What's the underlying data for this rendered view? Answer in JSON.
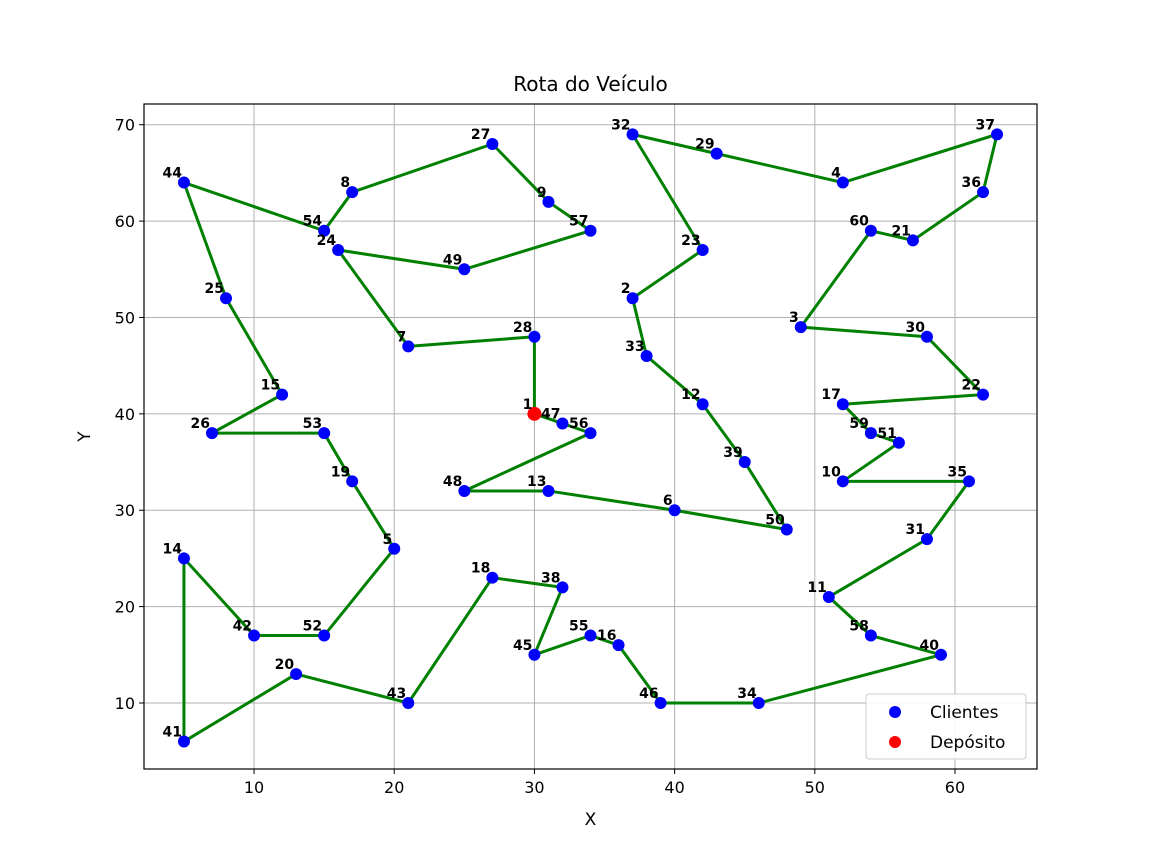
{
  "chart_data": {
    "type": "scatter",
    "title": "Rota do Veículo",
    "xlabel": "X",
    "ylabel": "Y",
    "xlim": [
      2.15,
      65.85
    ],
    "ylim": [
      3.15,
      72.15
    ],
    "x_ticks": [
      10,
      20,
      30,
      40,
      50,
      60
    ],
    "y_ticks": [
      10,
      20,
      30,
      40,
      50,
      60,
      70
    ],
    "grid": true,
    "legend": {
      "position": "lower-right",
      "entries": [
        "Clientes",
        "Depósito"
      ]
    },
    "colors": {
      "clientes": "#0000ff",
      "deposito": "#ff0000",
      "route": "#008000"
    },
    "depot": {
      "label": "1",
      "x": 30,
      "y": 40
    },
    "clients": [
      {
        "label": "2",
        "x": 37,
        "y": 52
      },
      {
        "label": "3",
        "x": 49,
        "y": 49
      },
      {
        "label": "4",
        "x": 52,
        "y": 64
      },
      {
        "label": "5",
        "x": 20,
        "y": 26
      },
      {
        "label": "6",
        "x": 40,
        "y": 30
      },
      {
        "label": "7",
        "x": 21,
        "y": 47
      },
      {
        "label": "8",
        "x": 17,
        "y": 63
      },
      {
        "label": "9",
        "x": 31,
        "y": 62
      },
      {
        "label": "10",
        "x": 52,
        "y": 33
      },
      {
        "label": "11",
        "x": 51,
        "y": 21
      },
      {
        "label": "12",
        "x": 42,
        "y": 41
      },
      {
        "label": "13",
        "x": 31,
        "y": 32
      },
      {
        "label": "14",
        "x": 5,
        "y": 25
      },
      {
        "label": "15",
        "x": 12,
        "y": 42
      },
      {
        "label": "16",
        "x": 36,
        "y": 16
      },
      {
        "label": "17",
        "x": 52,
        "y": 41
      },
      {
        "label": "18",
        "x": 27,
        "y": 23
      },
      {
        "label": "19",
        "x": 17,
        "y": 33
      },
      {
        "label": "20",
        "x": 13,
        "y": 13
      },
      {
        "label": "21",
        "x": 57,
        "y": 58
      },
      {
        "label": "22",
        "x": 62,
        "y": 42
      },
      {
        "label": "23",
        "x": 42,
        "y": 57
      },
      {
        "label": "24",
        "x": 16,
        "y": 57
      },
      {
        "label": "25",
        "x": 8,
        "y": 52
      },
      {
        "label": "26",
        "x": 7,
        "y": 38
      },
      {
        "label": "27",
        "x": 27,
        "y": 68
      },
      {
        "label": "28",
        "x": 30,
        "y": 48
      },
      {
        "label": "29",
        "x": 43,
        "y": 67
      },
      {
        "label": "30",
        "x": 58,
        "y": 48
      },
      {
        "label": "31",
        "x": 58,
        "y": 27
      },
      {
        "label": "32",
        "x": 37,
        "y": 69
      },
      {
        "label": "33",
        "x": 38,
        "y": 46
      },
      {
        "label": "34",
        "x": 46,
        "y": 10
      },
      {
        "label": "35",
        "x": 61,
        "y": 33
      },
      {
        "label": "36",
        "x": 62,
        "y": 63
      },
      {
        "label": "37",
        "x": 63,
        "y": 69
      },
      {
        "label": "38",
        "x": 32,
        "y": 22
      },
      {
        "label": "39",
        "x": 45,
        "y": 35
      },
      {
        "label": "40",
        "x": 59,
        "y": 15
      },
      {
        "label": "41",
        "x": 5,
        "y": 6
      },
      {
        "label": "42",
        "x": 10,
        "y": 17
      },
      {
        "label": "43",
        "x": 21,
        "y": 10
      },
      {
        "label": "44",
        "x": 5,
        "y": 64
      },
      {
        "label": "45",
        "x": 30,
        "y": 15
      },
      {
        "label": "46",
        "x": 39,
        "y": 10
      },
      {
        "label": "47",
        "x": 32,
        "y": 39
      },
      {
        "label": "48",
        "x": 25,
        "y": 32
      },
      {
        "label": "49",
        "x": 25,
        "y": 55
      },
      {
        "label": "50",
        "x": 48,
        "y": 28
      },
      {
        "label": "51",
        "x": 56,
        "y": 37
      },
      {
        "label": "52",
        "x": 15,
        "y": 17
      },
      {
        "label": "53",
        "x": 15,
        "y": 38
      },
      {
        "label": "54",
        "x": 15,
        "y": 59
      },
      {
        "label": "55",
        "x": 34,
        "y": 17
      },
      {
        "label": "56",
        "x": 34,
        "y": 38
      },
      {
        "label": "57",
        "x": 34,
        "y": 59
      },
      {
        "label": "58",
        "x": 54,
        "y": 17
      },
      {
        "label": "59",
        "x": 54,
        "y": 38
      },
      {
        "label": "60",
        "x": 54,
        "y": 59
      }
    ],
    "route": [
      "1",
      "47",
      "56",
      "48",
      "13",
      "6",
      "50",
      "39",
      "12",
      "33",
      "2",
      "23",
      "32",
      "29",
      "4",
      "37",
      "36",
      "21",
      "60",
      "3",
      "30",
      "22",
      "17",
      "59",
      "51",
      "10",
      "35",
      "31",
      "11",
      "58",
      "40",
      "34",
      "46",
      "16",
      "55",
      "45",
      "38",
      "18",
      "43",
      "20",
      "41",
      "14",
      "42",
      "52",
      "5",
      "19",
      "53",
      "26",
      "15",
      "25",
      "44",
      "54",
      "8",
      "27",
      "9",
      "57",
      "49",
      "24",
      "7",
      "28",
      "1"
    ]
  }
}
